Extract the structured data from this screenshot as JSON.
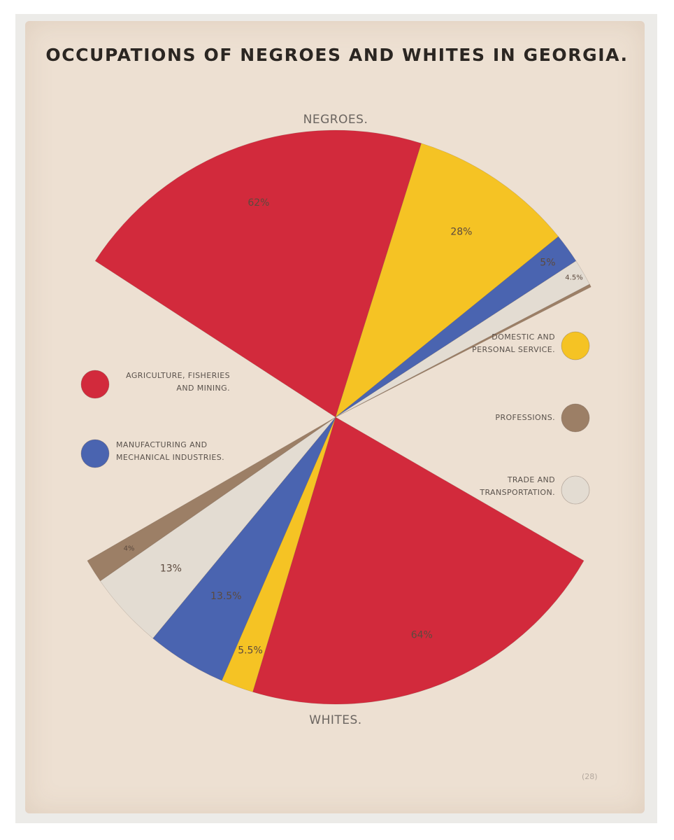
{
  "title": "OCCUPATIONS OF NEGROES AND WHITES IN GEORGIA.",
  "corner_mark": "(28)",
  "legend": [
    {
      "key": "agriculture",
      "lines": [
        "AGRICULTURE, FISHERIES",
        "AND MINING."
      ],
      "color": "#d22a3c"
    },
    {
      "key": "manufacturing",
      "lines": [
        "MANUFACTURING AND",
        "MECHANICAL INDUSTRIES."
      ],
      "color": "#4a64b0"
    },
    {
      "key": "domestic",
      "lines": [
        "DOMESTIC AND",
        "PERSONAL SERVICE."
      ],
      "color": "#f5c324"
    },
    {
      "key": "professions",
      "lines": [
        "PROFESSIONS."
      ],
      "color": "#9c7f66"
    },
    {
      "key": "trade",
      "lines": [
        "TRADE AND",
        "TRANSPORTATION."
      ],
      "color": "#e3dcd2"
    }
  ],
  "chart_data": {
    "type": "pie",
    "title": "OCCUPATIONS OF NEGROES AND WHITES IN GEORGIA.",
    "categories": [
      "AGRICULTURE, FISHERIES AND MINING.",
      "DOMESTIC AND PERSONAL SERVICE.",
      "MANUFACTURING AND MECHANICAL INDUSTRIES.",
      "TRADE AND TRANSPORTATION.",
      "PROFESSIONS."
    ],
    "series": [
      {
        "name": "NEGROES.",
        "values": [
          62,
          28,
          5,
          4.5,
          0.5
        ],
        "labels": [
          "62%",
          "28%",
          "5%",
          "4.5%",
          ""
        ]
      },
      {
        "name": "WHITES.",
        "values": [
          64,
          5.5,
          13.5,
          13,
          4
        ],
        "labels": [
          "64%",
          "5.5%",
          "13.5%",
          "13%",
          "4%"
        ]
      }
    ],
    "legend": "left and right sides"
  }
}
